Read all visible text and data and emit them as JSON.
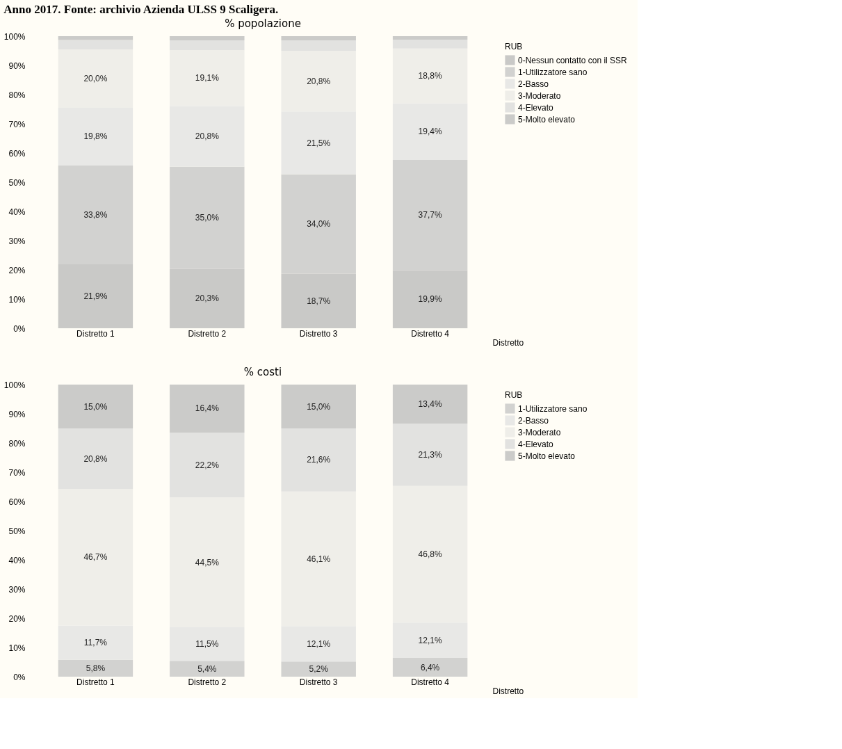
{
  "chart_data": [
    {
      "type": "bar",
      "title": "% popolazione",
      "xlabel": "Distretto",
      "legend_title": "RUB",
      "legend": "top right",
      "stacked": true,
      "grid": false,
      "annotations": [
        "Anno 2017. Fonte: archivio Azienda ULSS 9 Scaligera."
      ],
      "categories": [
        "Distretto 1",
        "Distretto 2",
        "Distretto 3",
        "Distretto 4"
      ],
      "ylim": [
        0,
        100
      ],
      "yticks": [
        {
          "value": 0,
          "label": "0%"
        },
        {
          "value": 10,
          "label": "10%"
        },
        {
          "value": 20,
          "label": "20%"
        },
        {
          "value": 30,
          "label": "30%"
        },
        {
          "value": 40,
          "label": "40%"
        },
        {
          "value": 50,
          "label": "50%"
        },
        {
          "value": 60,
          "label": "60%"
        },
        {
          "value": 70,
          "label": "70%"
        },
        {
          "value": 80,
          "label": "80%"
        },
        {
          "value": 90,
          "label": "90%"
        },
        {
          "value": 100,
          "label": "100%"
        }
      ],
      "series": [
        {
          "name": "0-Nessun contatto con il SSR",
          "color": "#c9c9c7",
          "values": [
            21.9,
            20.3,
            18.7,
            19.9
          ],
          "value_labels": [
            "21,9%",
            "20,3%",
            "18,7%",
            "19,9%"
          ]
        },
        {
          "name": "1-Utilizzatore sano",
          "color": "#d2d2d0",
          "values": [
            33.8,
            35.0,
            34.0,
            37.7
          ],
          "value_labels": [
            "33,8%",
            "35,0%",
            "34,0%",
            "37,7%"
          ]
        },
        {
          "name": "2-Basso",
          "color": "#e8e8e6",
          "values": [
            19.8,
            20.8,
            21.5,
            19.4
          ],
          "value_labels": [
            "19,8%",
            "20,8%",
            "21,5%",
            "19,4%"
          ]
        },
        {
          "name": "3-Moderato",
          "color": "#efeee9",
          "values": [
            20.0,
            19.1,
            20.8,
            18.8
          ],
          "value_labels": [
            "20,0%",
            "19,1%",
            "20,8%",
            "18,8%"
          ]
        },
        {
          "name": "4-Elevato",
          "color": "#e2e2e0",
          "values": [
            3.2,
            3.4,
            3.6,
            3.0
          ],
          "value_labels": [
            null,
            null,
            null,
            null
          ]
        },
        {
          "name": "5-Molto elevato",
          "color": "#cbcbc9",
          "values": [
            1.3,
            1.4,
            1.4,
            1.2
          ],
          "value_labels": [
            null,
            null,
            null,
            null
          ]
        }
      ]
    },
    {
      "type": "bar",
      "title": "% costi",
      "xlabel": "Distretto",
      "legend_title": "RUB",
      "legend": "top right",
      "stacked": true,
      "grid": false,
      "categories": [
        "Distretto 1",
        "Distretto 2",
        "Distretto 3",
        "Distretto 4"
      ],
      "ylim": [
        0,
        100
      ],
      "yticks": [
        {
          "value": 0,
          "label": "0%"
        },
        {
          "value": 10,
          "label": "10%"
        },
        {
          "value": 20,
          "label": "20%"
        },
        {
          "value": 30,
          "label": "30%"
        },
        {
          "value": 40,
          "label": "40%"
        },
        {
          "value": 50,
          "label": "50%"
        },
        {
          "value": 60,
          "label": "60%"
        },
        {
          "value": 70,
          "label": "70%"
        },
        {
          "value": 80,
          "label": "80%"
        },
        {
          "value": 90,
          "label": "90%"
        },
        {
          "value": 100,
          "label": "100%"
        }
      ],
      "series": [
        {
          "name": "1-Utilizzatore sano",
          "color": "#d2d2d0",
          "values": [
            5.8,
            5.4,
            5.2,
            6.4
          ],
          "value_labels": [
            "5,8%",
            "5,4%",
            "5,2%",
            "6,4%"
          ]
        },
        {
          "name": "2-Basso",
          "color": "#e8e8e6",
          "values": [
            11.7,
            11.5,
            12.1,
            12.1
          ],
          "value_labels": [
            "11,7%",
            "11,5%",
            "12,1%",
            "12,1%"
          ]
        },
        {
          "name": "3-Moderato",
          "color": "#efeee9",
          "values": [
            46.7,
            44.5,
            46.1,
            46.8
          ],
          "value_labels": [
            "46,7%",
            "44,5%",
            "46,1%",
            "46,8%"
          ]
        },
        {
          "name": "4-Elevato",
          "color": "#e2e2e0",
          "values": [
            20.8,
            22.2,
            21.6,
            21.3
          ],
          "value_labels": [
            "20,8%",
            "22,2%",
            "21,6%",
            "21,3%"
          ]
        },
        {
          "name": "5-Molto elevato",
          "color": "#cbcbc9",
          "values": [
            15.0,
            16.4,
            15.0,
            13.4
          ],
          "value_labels": [
            "15,0%",
            "16,4%",
            "15,0%",
            "13,4%"
          ]
        }
      ]
    }
  ]
}
